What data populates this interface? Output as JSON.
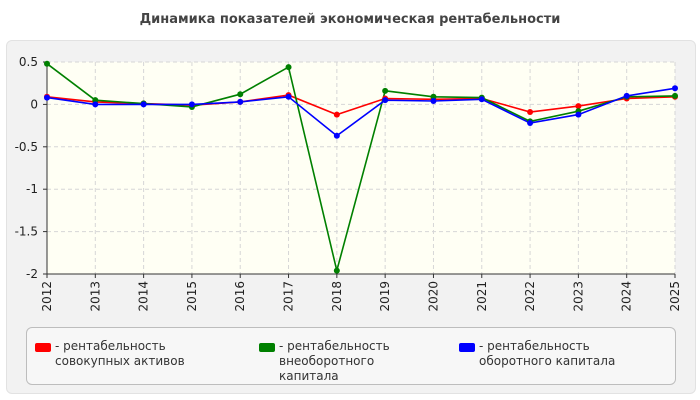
{
  "chart_data": {
    "type": "line",
    "title": "Динамика показателей экономическая рентабельности",
    "categories": [
      "2012",
      "2013",
      "2014",
      "2015",
      "2016",
      "2017",
      "2018",
      "2019",
      "2020",
      "2021",
      "2022",
      "2023",
      "2024",
      "2025"
    ],
    "ylim": [
      -2,
      0.5
    ],
    "yticks": [
      0.5,
      0,
      -0.5,
      -1,
      -1.5,
      -2
    ],
    "ytick_labels": [
      "0.5",
      "0",
      "-0.5",
      "-1",
      "-1.5",
      "-2"
    ],
    "grid": true,
    "legend_position": "bottom",
    "series": [
      {
        "name": "- рентабельность совокупных активов",
        "color": "#ff0000",
        "values": [
          0.09,
          0.03,
          0.01,
          -0.01,
          0.03,
          0.11,
          -0.12,
          0.07,
          0.06,
          0.07,
          -0.09,
          -0.02,
          0.07,
          0.09
        ]
      },
      {
        "name": "- рентабельность внеоборотного капитала",
        "color": "#008000",
        "values": [
          0.48,
          0.05,
          0.01,
          -0.03,
          0.12,
          0.44,
          -1.96,
          0.16,
          0.09,
          0.08,
          -0.2,
          -0.08,
          0.09,
          0.1
        ]
      },
      {
        "name": "- рентабельность оборотного капитала",
        "color": "#0000ff",
        "values": [
          0.08,
          0.0,
          0.0,
          0.0,
          0.03,
          0.09,
          -0.37,
          0.05,
          0.04,
          0.06,
          -0.22,
          -0.12,
          0.1,
          0.19
        ]
      }
    ]
  }
}
